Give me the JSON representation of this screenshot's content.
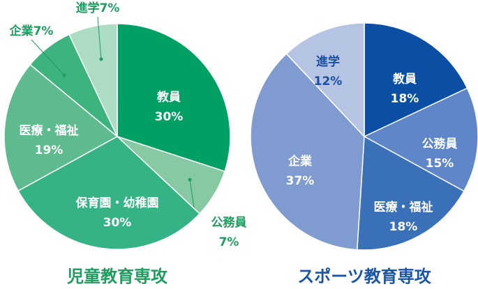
{
  "chart_data": [
    {
      "type": "pie",
      "title": "児童教育専攻",
      "categories": [
        "教員",
        "公務員",
        "保育園・幼稚園",
        "医療・福祉",
        "企業",
        "進学"
      ],
      "values": [
        30,
        7,
        30,
        19,
        7,
        7
      ],
      "value_labels": [
        "30%",
        "7%",
        "30%",
        "19%",
        "7%",
        "7%"
      ],
      "colors": [
        "#00a064",
        "#86c9a3",
        "#35b384",
        "#5dbb8e",
        "#3db37d",
        "#acdcc4"
      ],
      "title_color": "#1e9d5f"
    },
    {
      "type": "pie",
      "title": "スポーツ教育専攻",
      "categories": [
        "教員",
        "公務員",
        "医療・福祉",
        "企業",
        "進学"
      ],
      "values": [
        18,
        15,
        18,
        37,
        12
      ],
      "value_labels": [
        "18%",
        "15%",
        "18%",
        "37%",
        "12%"
      ],
      "colors": [
        "#0a4fa3",
        "#5e86c8",
        "#3a70b8",
        "#7f9bd0",
        "#b6c4e4"
      ],
      "title_color": "#1a55a8"
    }
  ]
}
